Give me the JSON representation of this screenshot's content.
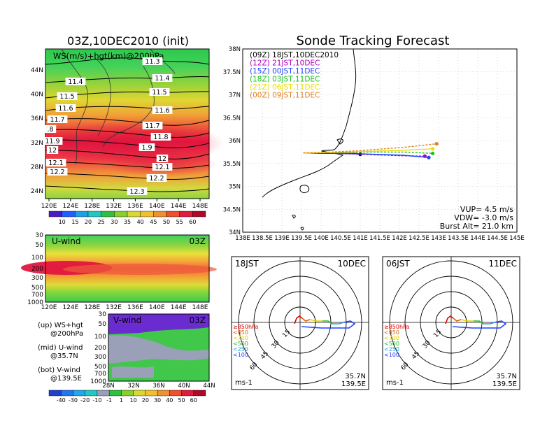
{
  "chart_data": [
    {
      "type": "heatmap",
      "title": "03Z,10DEC2010 (init)",
      "subtitle": "WS(m/s)+hgt(km)@200hPa",
      "x_ticks": [
        "120E",
        "124E",
        "128E",
        "132E",
        "136E",
        "140E",
        "144E",
        "148E"
      ],
      "y_ticks": [
        "24N",
        "28N",
        "32N",
        "36N",
        "40N",
        "44N"
      ],
      "contour_labels": [
        "11.3",
        "11.4",
        "11.4",
        "11.5",
        "11.5",
        "11.6",
        "11.6",
        "11.7",
        "11.7",
        ".8",
        "11.8",
        "11.9",
        "1.9",
        "12",
        "12",
        "12.1",
        "12.1",
        "12.2",
        "12.2",
        "12.3"
      ],
      "colorbar": [
        "10",
        "15",
        "20",
        "25",
        "30",
        "35",
        "40",
        "45",
        "50",
        "55",
        "60"
      ]
    },
    {
      "type": "heatmap",
      "title": "U-wind",
      "time_label": "03Z",
      "x_ticks": [
        "120E",
        "124E",
        "128E",
        "132E",
        "136E",
        "140E",
        "144E",
        "148E"
      ],
      "y_ticks": [
        "30",
        "50",
        "100",
        "200",
        "300",
        "500",
        "700",
        "1000"
      ]
    },
    {
      "type": "heatmap",
      "title": "V-wind",
      "time_label": "03Z",
      "x_ticks": [
        "28N",
        "32N",
        "36N",
        "40N",
        "44N"
      ],
      "y_ticks": [
        "30",
        "50",
        "100",
        "200",
        "300",
        "500",
        "700",
        "1000"
      ],
      "colorbar": [
        "-40",
        "-30",
        "-20",
        "-10",
        "-1",
        "1",
        "10",
        "20",
        "30",
        "40",
        "50",
        "60"
      ]
    },
    {
      "type": "line",
      "title": "Sonde Tracking Forecast",
      "x_ticks": [
        "138E",
        "138.5E",
        "139E",
        "139.5E",
        "140E",
        "140.5E",
        "141E",
        "141.5E",
        "142E",
        "142.5E",
        "143E",
        "143.5E",
        "144E",
        "144.5E",
        "145E"
      ],
      "y_ticks": [
        "34N",
        "34.5N",
        "35N",
        "35.5N",
        "36N",
        "36.5N",
        "37N",
        "37.5N",
        "38N"
      ],
      "xlim": [
        138,
        145
      ],
      "ylim": [
        34,
        38
      ],
      "series": [
        {
          "name": "(09Z) 18JST,10DEC2010",
          "color": "#000000",
          "points": [
            [
              139.55,
              35.73
            ],
            [
              140.2,
              35.72
            ],
            [
              140.9,
              35.72
            ],
            [
              141.0,
              35.7
            ]
          ]
        },
        {
          "name": "(12Z) 21JST,10DEC",
          "color": "#b000c0",
          "points": [
            [
              139.55,
              35.73
            ],
            [
              140.3,
              35.72
            ],
            [
              141.0,
              35.7
            ],
            [
              142.0,
              35.67
            ],
            [
              142.65,
              35.66
            ]
          ]
        },
        {
          "name": "(15Z) 00JST,11DEC",
          "color": "#2040ff",
          "points": [
            [
              139.55,
              35.73
            ],
            [
              140.3,
              35.72
            ],
            [
              141.0,
              35.71
            ],
            [
              142.1,
              35.68
            ],
            [
              142.75,
              35.63
            ]
          ]
        },
        {
          "name": "(18Z) 03JST,11DEC",
          "color": "#20c020",
          "points": [
            [
              139.55,
              35.73
            ],
            [
              140.3,
              35.74
            ],
            [
              141.0,
              35.75
            ],
            [
              142.1,
              35.75
            ],
            [
              142.85,
              35.72
            ]
          ]
        },
        {
          "name": "(21Z) 06JST,11DEC",
          "color": "#e8e000",
          "points": [
            [
              139.55,
              35.73
            ],
            [
              140.3,
              35.74
            ],
            [
              141.0,
              35.76
            ],
            [
              142.1,
              35.79
            ],
            [
              142.85,
              35.82
            ]
          ]
        },
        {
          "name": "(00Z) 09JST,11DEC",
          "color": "#e08020",
          "points": [
            [
              139.55,
              35.73
            ],
            [
              140.3,
              35.75
            ],
            [
              141.0,
              35.78
            ],
            [
              142.2,
              35.86
            ],
            [
              142.95,
              35.93
            ]
          ]
        }
      ],
      "annotations": [
        "VUP= 4.5 m/s",
        "VDW= -3.0 m/s",
        "Burst Alt= 21.0 km"
      ]
    },
    {
      "type": "line",
      "title": "18JST",
      "date": "10DEC",
      "ring_labels": [
        "15",
        "30",
        "45",
        "60"
      ],
      "levels": [
        "≥850hPa",
        "<850",
        "<700",
        "<500",
        "<250",
        "<100"
      ],
      "location": [
        "35.7N",
        "139.5E"
      ],
      "unit": "ms-1"
    },
    {
      "type": "line",
      "title": "06JST",
      "date": "11DEC",
      "ring_labels": [
        "15",
        "30",
        "45",
        "60"
      ],
      "levels": [
        "≥850hPa",
        "<850",
        "<700",
        "<500",
        "<250",
        "<100"
      ],
      "location": [
        "35.7N",
        "139.5E"
      ],
      "unit": "ms-1"
    }
  ],
  "legend_notes": [
    [
      "(up) WS+hgt",
      "@200hPa"
    ],
    [
      "(mid) U-wind",
      "@35.7N"
    ],
    [
      "(bot) V-wind",
      "@139.5E"
    ]
  ]
}
